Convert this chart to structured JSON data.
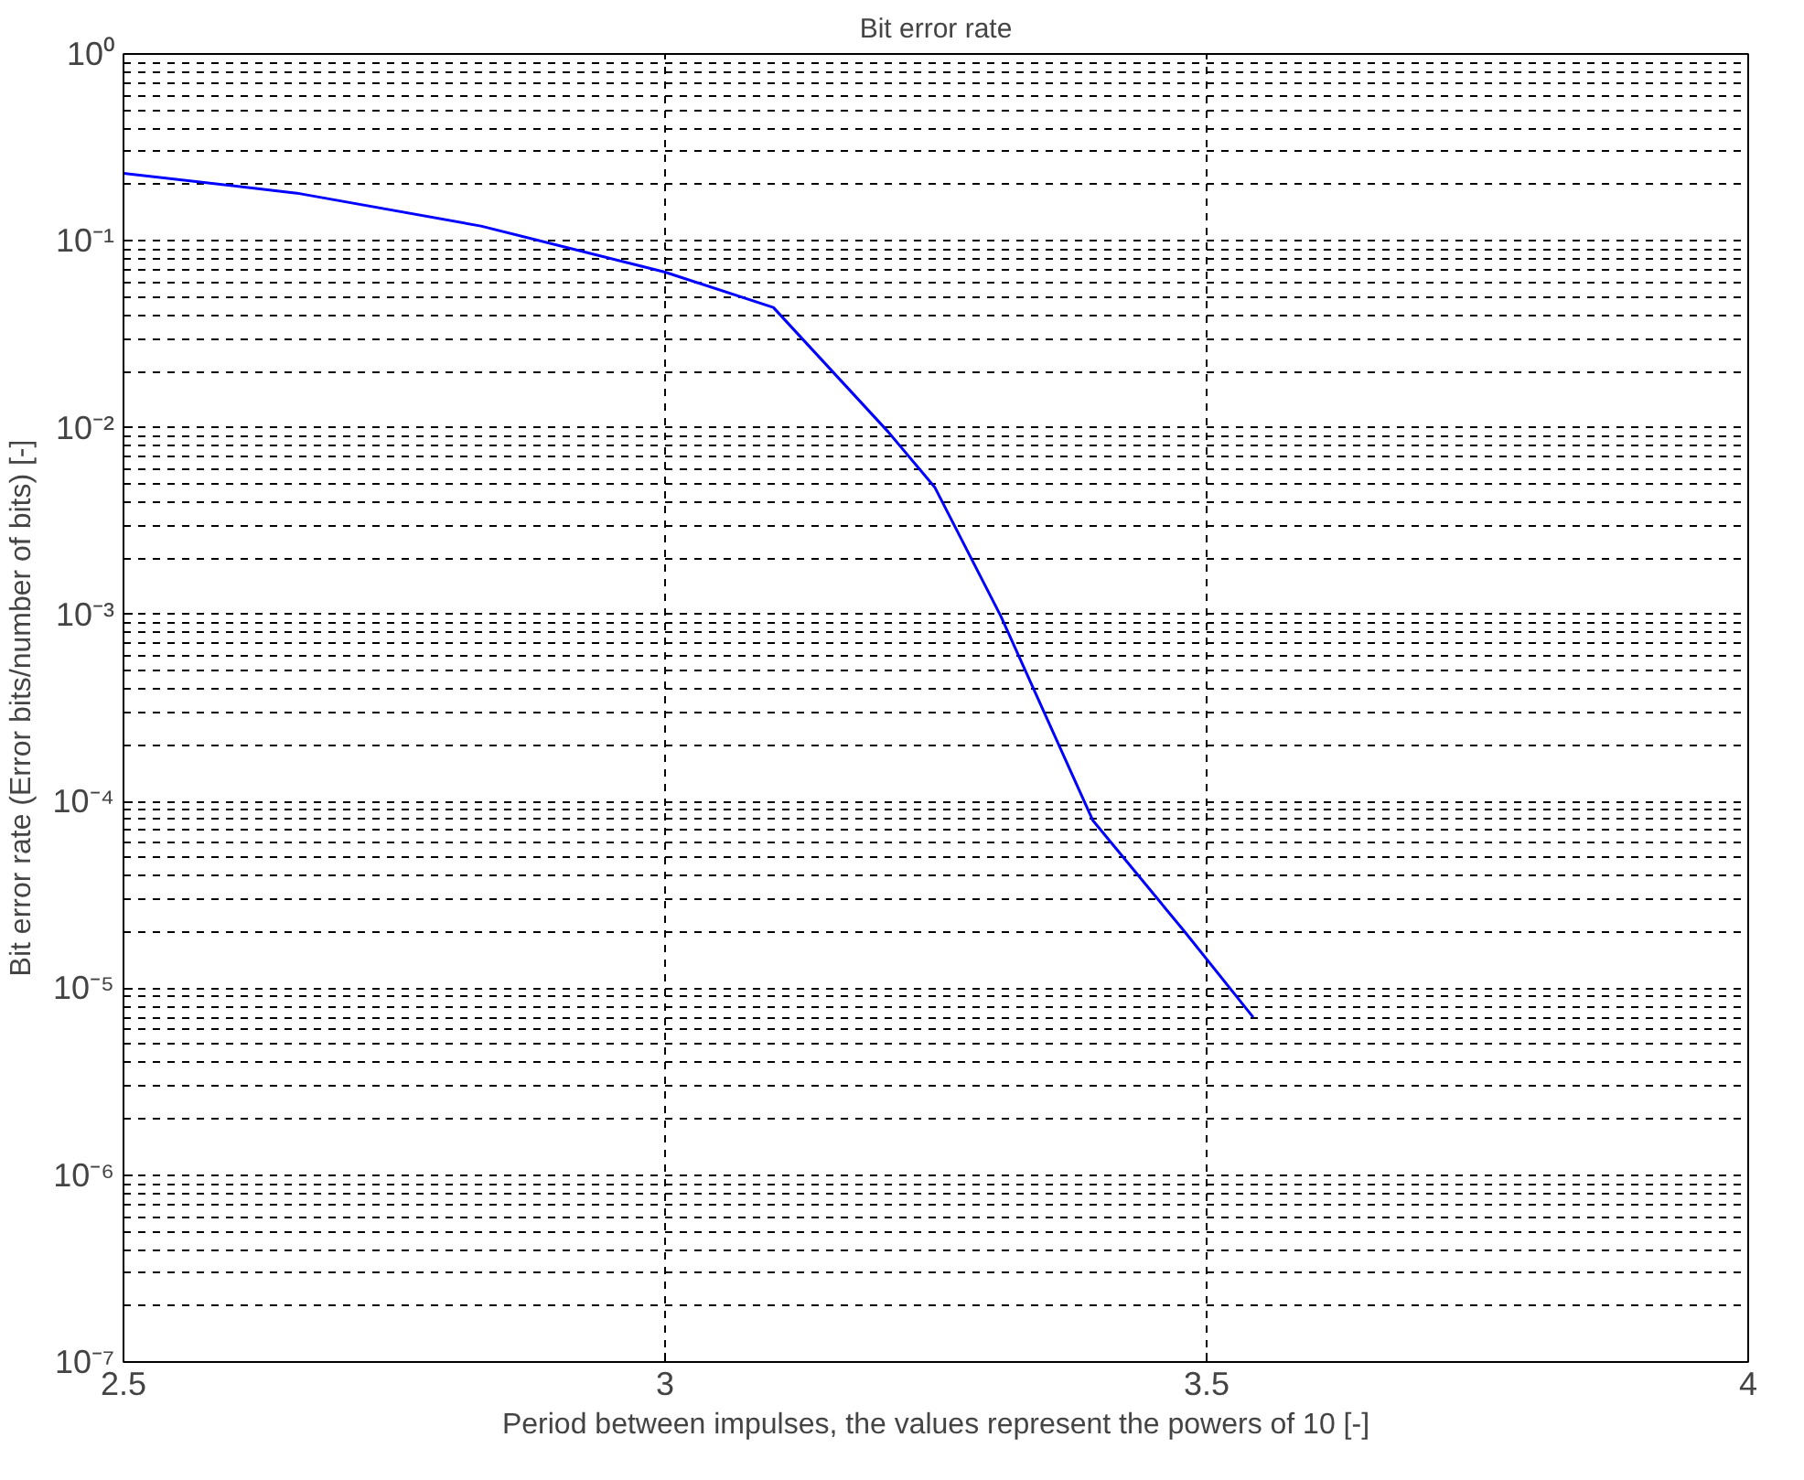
{
  "chart_data": {
    "type": "line",
    "title": "Bit error rate",
    "xlabel": "Period between impulses, the values represent the powers of 10 [-]",
    "ylabel": "Bit error rate (Error bits/number of bits) [-]",
    "log": "y",
    "grid": true,
    "line_style": "solid",
    "marker": "none",
    "xlim": [
      2.5,
      4
    ],
    "xticks": [
      2.5,
      3,
      3.5,
      4
    ],
    "ylim": [
      1e-07,
      1
    ],
    "yticks": [
      {
        "value": 1,
        "label": "10⁰"
      },
      {
        "value": 0.1,
        "label": "10⁻¹"
      },
      {
        "value": 0.01,
        "label": "10⁻²"
      },
      {
        "value": 0.001,
        "label": "10⁻³"
      },
      {
        "value": 0.0001,
        "label": "10⁻⁴"
      },
      {
        "value": 1e-05,
        "label": "10⁻⁵"
      },
      {
        "value": 1e-06,
        "label": "10⁻⁶"
      },
      {
        "value": 1e-07,
        "label": "10⁻⁷"
      }
    ],
    "series": [
      {
        "color": "#0000ff",
        "x": [
          2.5,
          2.66,
          2.83,
          3.0,
          3.1,
          3.206,
          3.249,
          3.31,
          3.395,
          3.48,
          3.543
        ],
        "values": [
          0.23,
          0.18,
          0.12,
          0.068,
          0.044,
          0.0095,
          0.0048,
          0.00098,
          7.9e-05,
          2e-05,
          7e-06
        ]
      }
    ]
  }
}
